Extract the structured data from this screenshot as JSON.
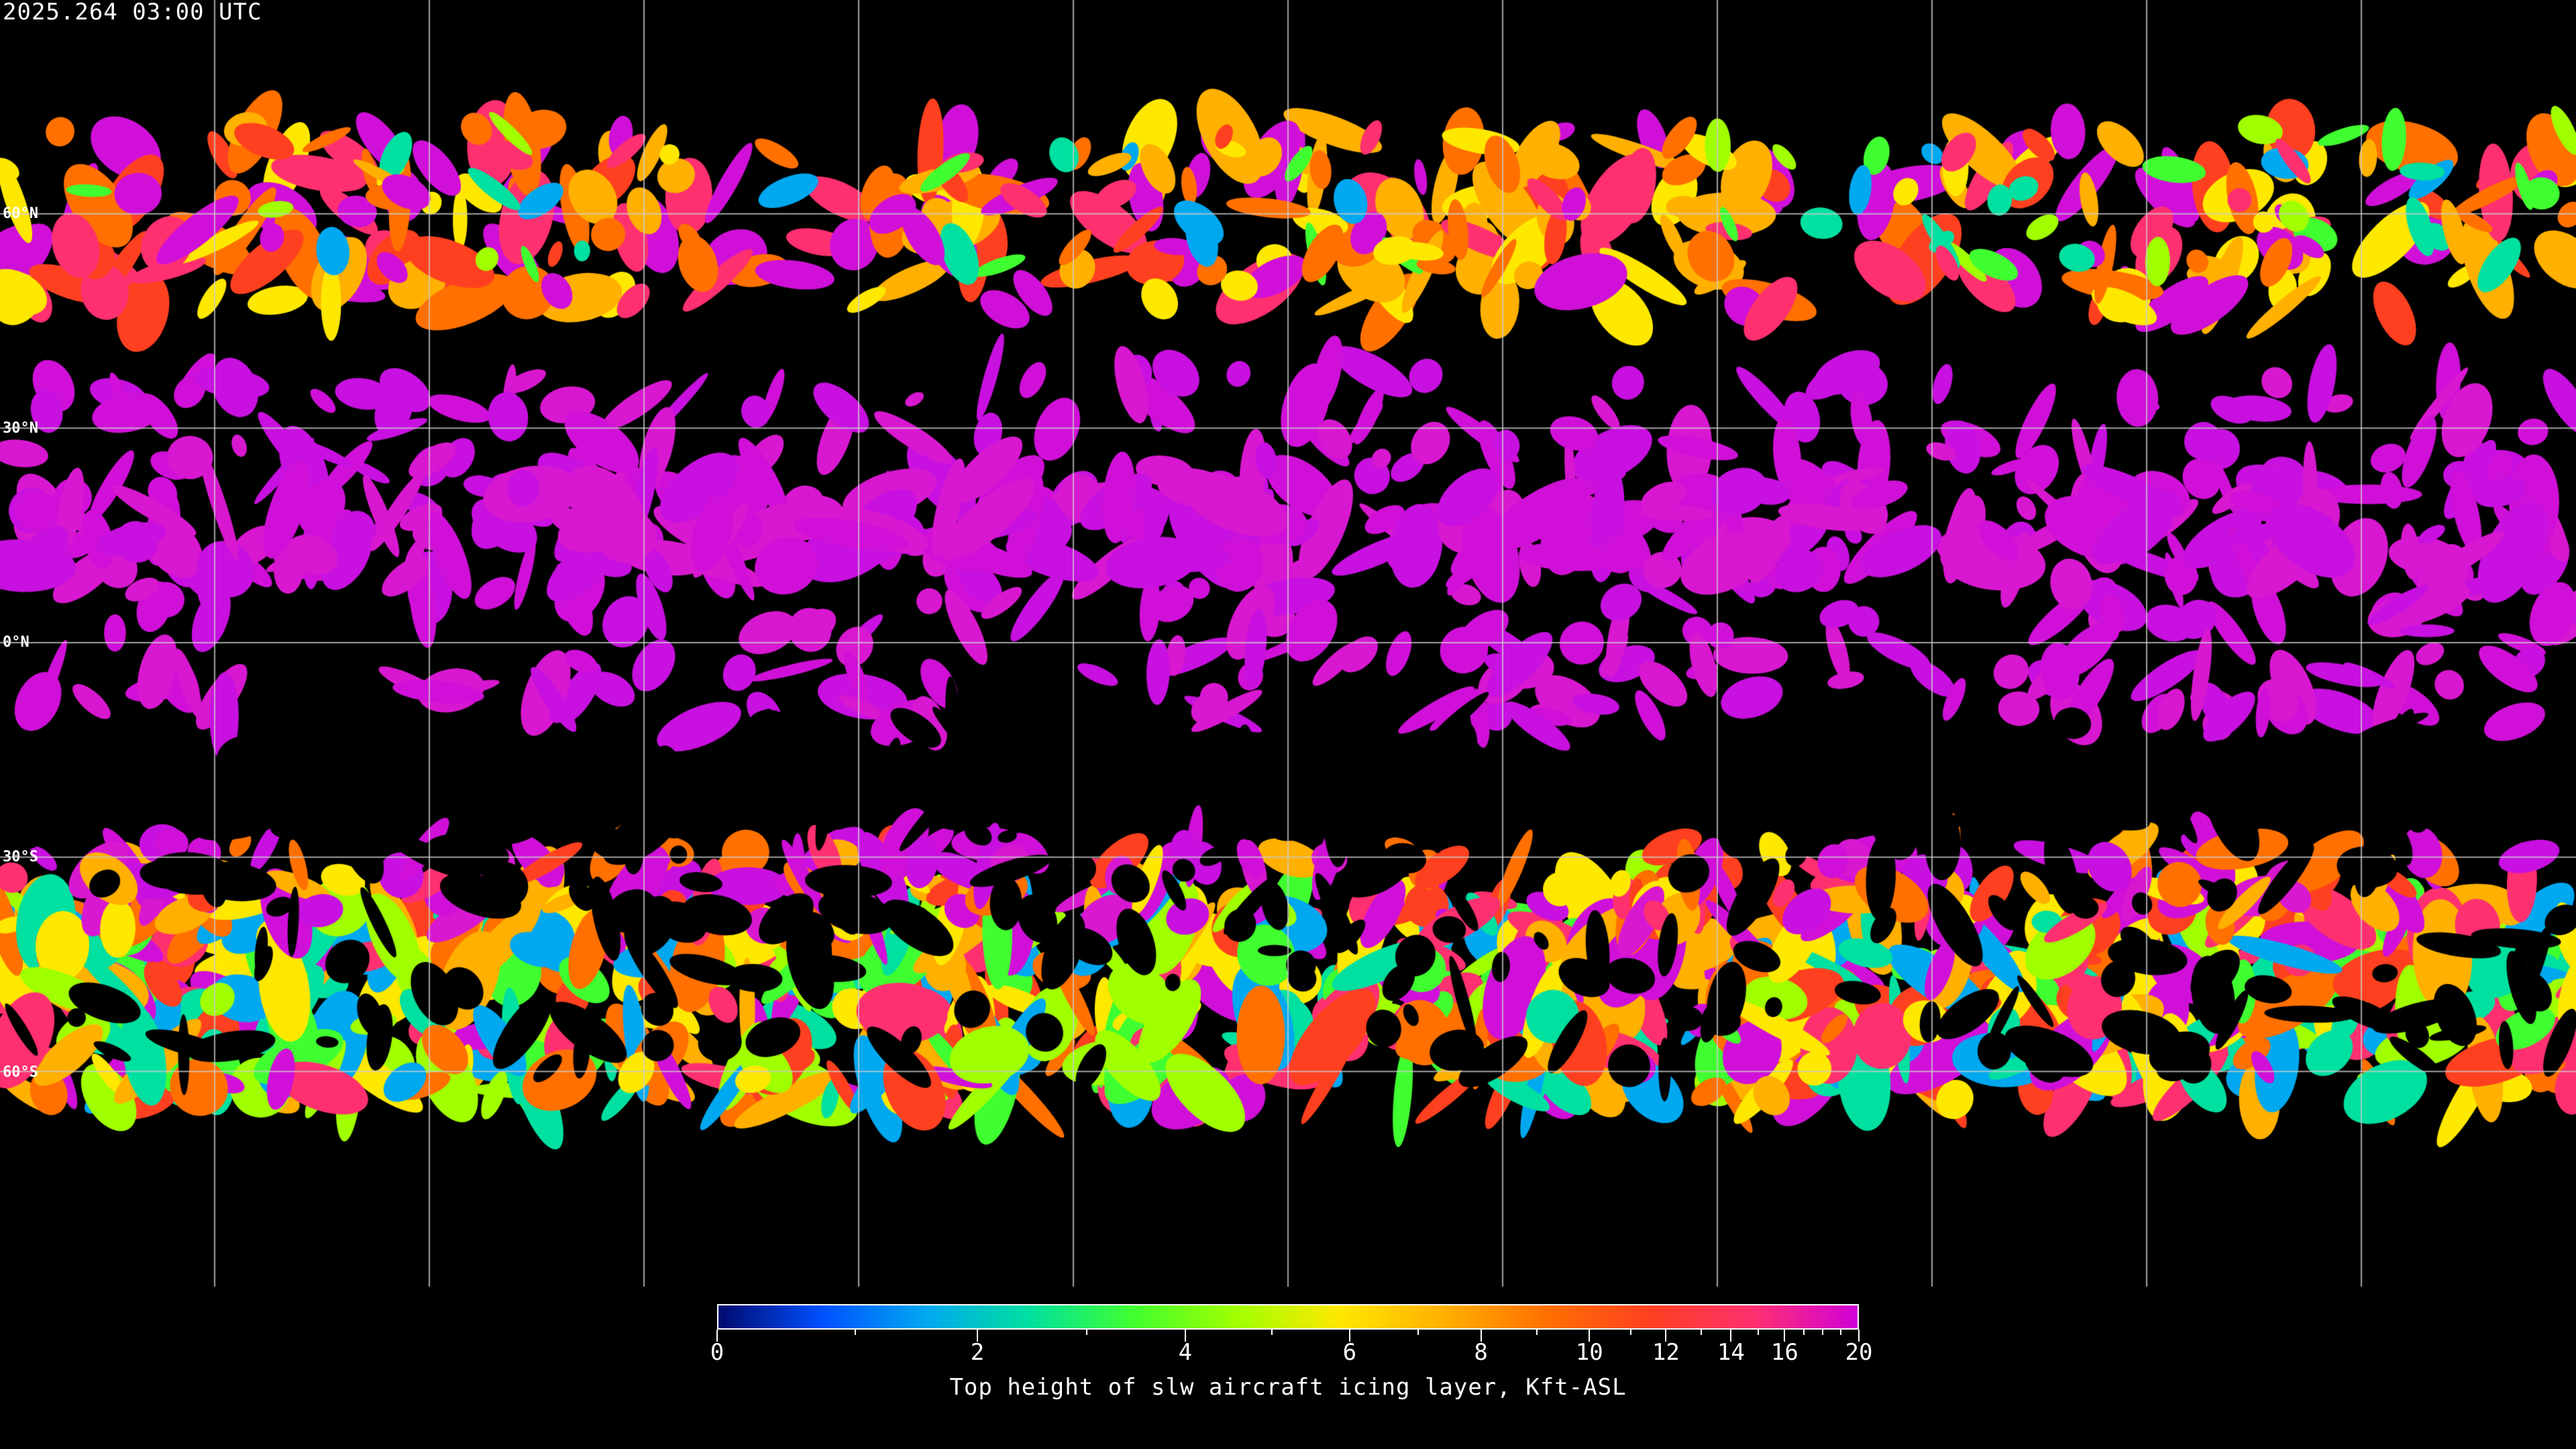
{
  "header": {
    "timestamp": "2025.264 03:00 UTC"
  },
  "map": {
    "projection": "equirectangular",
    "background": "#000000",
    "grid_color": "#cccccc",
    "grid_spacing_deg": 30,
    "lat_labels": [
      "60°N",
      "30°N",
      "0°N",
      "30°S",
      "60°S"
    ]
  },
  "colorbar": {
    "title": "Top height of slw aircraft icing layer, Kft-ASL",
    "min": 0,
    "max": 20,
    "tick_labels": [
      "0",
      "2",
      "4",
      "6",
      "8",
      "10",
      "12",
      "14",
      "16",
      "20"
    ],
    "colors": [
      "#000a6e",
      "#0050ff",
      "#00a8f0",
      "#00e0a0",
      "#40ff30",
      "#a0ff00",
      "#ffe800",
      "#ffb000",
      "#ff7000",
      "#ff4020",
      "#ff3070",
      "#d000d8"
    ]
  }
}
